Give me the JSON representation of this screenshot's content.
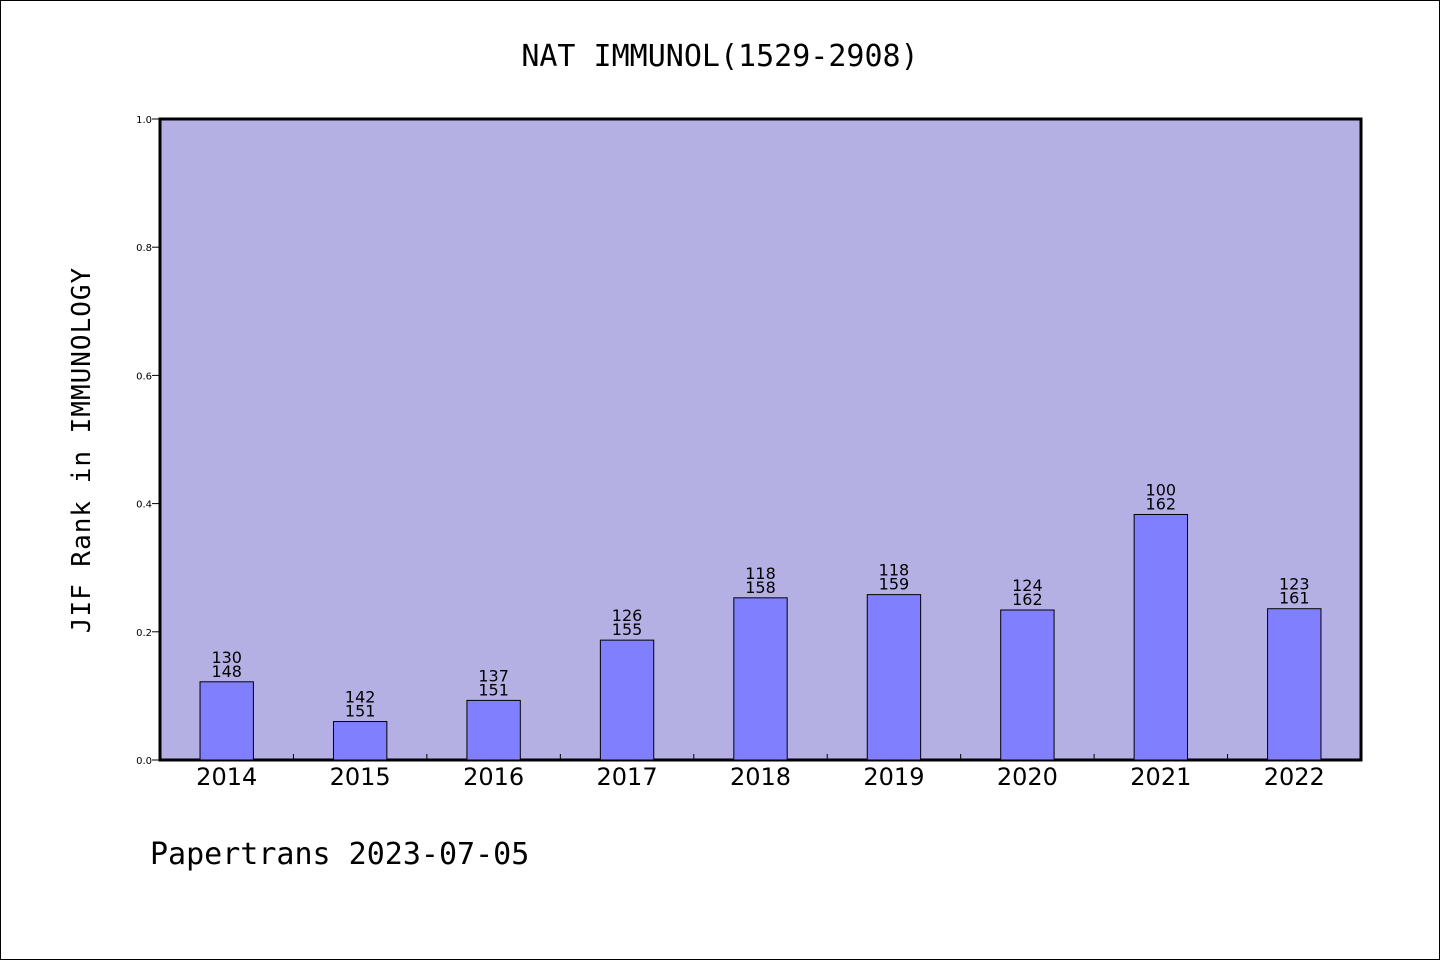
{
  "chart_data": {
    "type": "bar",
    "title": "NAT IMMUNOL(1529-2908)",
    "xlabel": "",
    "ylabel": "JIF Rank in IMMUNOLOGY",
    "categories": [
      "2014",
      "2015",
      "2016",
      "2017",
      "2018",
      "2019",
      "2020",
      "2021",
      "2022"
    ],
    "values": [
      0.122,
      0.06,
      0.093,
      0.187,
      0.253,
      0.258,
      0.234,
      0.383,
      0.236
    ],
    "rank_labels": [
      "130",
      "142",
      "137",
      "126",
      "118",
      "118",
      "124",
      "100",
      "123"
    ],
    "total_labels": [
      "148",
      "151",
      "151",
      "155",
      "158",
      "159",
      "162",
      "162",
      "161"
    ],
    "ylim": [
      0,
      1.0
    ],
    "yticks": [
      "0.0",
      "0.2",
      "0.4",
      "0.6",
      "0.8",
      "1.0"
    ],
    "grid": false,
    "colors": {
      "plot_background": "#b5b0e3",
      "bar_fill": "#8080ff",
      "bar_edge": "#000000"
    }
  },
  "footer": "Papertrans 2023-07-05"
}
